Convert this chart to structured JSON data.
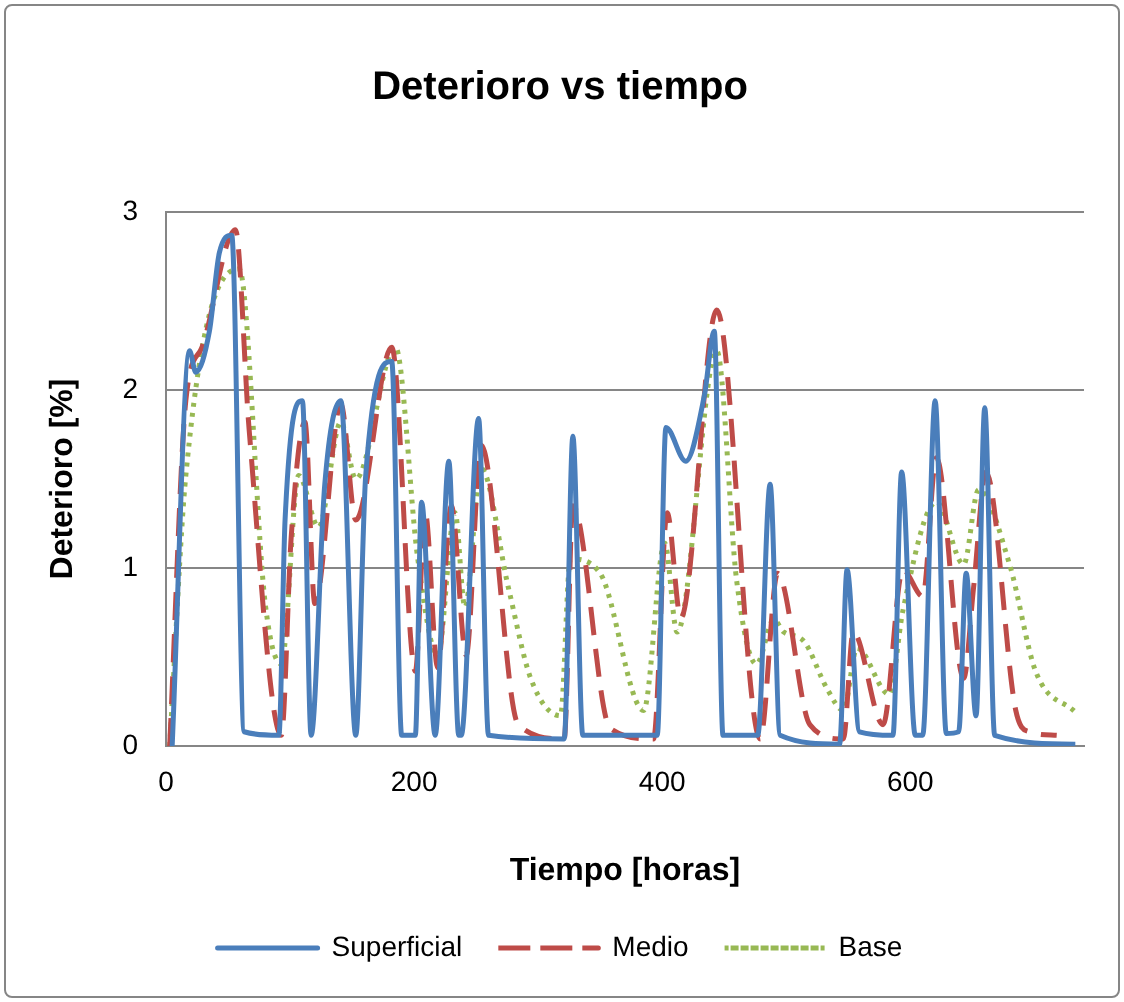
{
  "chart_data": {
    "type": "line",
    "title": "Deterioro vs tiempo",
    "xlabel": "Tiempo [horas]",
    "ylabel": "Deterioro [%]",
    "xlim": [
      0,
      740
    ],
    "xticks": [
      0,
      200,
      400,
      600
    ],
    "ylim": [
      0,
      3
    ],
    "yticks": [
      0,
      1,
      2,
      3
    ],
    "grid": "y",
    "legend": "bottom",
    "marker": "none",
    "series": [
      {
        "name": "Superficial",
        "color": "#4a7ebb",
        "line_style": "solid",
        "x": [
          5,
          19,
          24,
          35,
          43,
          53,
          63,
          91,
          96,
          110,
          117,
          128,
          141,
          153,
          161,
          182,
          190,
          201,
          206,
          217,
          228,
          236,
          238,
          252,
          260,
          321,
          328,
          336,
          396,
          403,
          419,
          434,
          442,
          449,
          477,
          487,
          495,
          543,
          549,
          559,
          586,
          593,
          604,
          610,
          620,
          629,
          639,
          645,
          653,
          660,
          668,
          733
        ],
        "values": [
          0,
          2.22,
          2.1,
          2.33,
          2.77,
          2.87,
          0.08,
          0.06,
          1.27,
          1.94,
          0.06,
          1.47,
          1.94,
          0.06,
          1.52,
          2.16,
          0.06,
          0.06,
          1.37,
          0.06,
          1.6,
          0.06,
          0.06,
          1.84,
          0.06,
          0.04,
          1.74,
          0.06,
          0.06,
          1.79,
          1.6,
          1.97,
          2.33,
          0.06,
          0.06,
          1.47,
          0.06,
          0.01,
          0.99,
          0.08,
          0.06,
          1.54,
          0.06,
          0.06,
          1.94,
          0.07,
          0.08,
          0.97,
          0.17,
          1.9,
          0.06,
          0.01
        ]
      },
      {
        "name": "Medio",
        "color": "#be4b48",
        "line_style": "dashed",
        "x": [
          3,
          16,
          29,
          56,
          67,
          93,
          101,
          112,
          120,
          141,
          153,
          182,
          201,
          209,
          219,
          230,
          242,
          254,
          284,
          321,
          328,
          358,
          393,
          404,
          415,
          444,
          479,
          493,
          519,
          546,
          554,
          578,
          594,
          610,
          621,
          643,
          651,
          661,
          685,
          696,
          718
        ],
        "values": [
          0,
          1.94,
          2.24,
          2.9,
          1.78,
          0.06,
          1.18,
          1.82,
          0.8,
          1.92,
          1.27,
          2.24,
          0.42,
          1.31,
          0.44,
          1.35,
          0.51,
          1.69,
          0.12,
          0.04,
          1.35,
          0.1,
          0.04,
          1.31,
          0.72,
          2.45,
          0.04,
          0.97,
          0.12,
          0.04,
          0.64,
          0.12,
          0.99,
          0.84,
          1.62,
          0.38,
          0.89,
          1.54,
          0.2,
          0.08,
          0.06
        ]
      },
      {
        "name": "Base",
        "color": "#98b954",
        "line_style": "dotted",
        "x": [
          3,
          16,
          59,
          80,
          93,
          107,
          123,
          141,
          153,
          185,
          203,
          219,
          233,
          241,
          254,
          276,
          294,
          318,
          326,
          350,
          385,
          402,
          412,
          444,
          460,
          476,
          490,
          498,
          514,
          533,
          546,
          557,
          583,
          594,
          621,
          643,
          655,
          680,
          701,
          733
        ],
        "values": [
          0,
          1.52,
          2.68,
          0.8,
          0.46,
          1.52,
          1.23,
          1.82,
          1.5,
          2.24,
          1.05,
          0.51,
          1.31,
          0.78,
          1.56,
          0.89,
          0.38,
          0.17,
          1.05,
          0.97,
          0.2,
          1.14,
          0.64,
          2.22,
          0.93,
          0.46,
          0.71,
          0.64,
          0.59,
          0.32,
          0.2,
          0.55,
          0.29,
          0.76,
          1.37,
          1.02,
          1.44,
          1.02,
          0.42,
          0.19
        ]
      }
    ]
  }
}
